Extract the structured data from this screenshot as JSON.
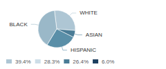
{
  "chart_data": {
    "type": "pie",
    "categories": [
      "WHITE",
      "ASIAN",
      "HISPANIC",
      "BLACK"
    ],
    "values": [
      28.3,
      6.0,
      26.4,
      39.4
    ],
    "colors": [
      "#aec6d4",
      "#4a7c96",
      "#5a8fa8",
      "#9ab8c8"
    ],
    "legend": "bottom",
    "legend_items": [
      {
        "value": 39.4,
        "label": "39.4%",
        "color": "#aec6d4"
      },
      {
        "value": 28.3,
        "label": "28.3%",
        "color": "#cddee8"
      },
      {
        "value": 26.4,
        "label": "26.4%",
        "color": "#4a7c96"
      },
      {
        "value": 6.0,
        "label": "6.0%",
        "color": "#1e4060"
      }
    ]
  }
}
